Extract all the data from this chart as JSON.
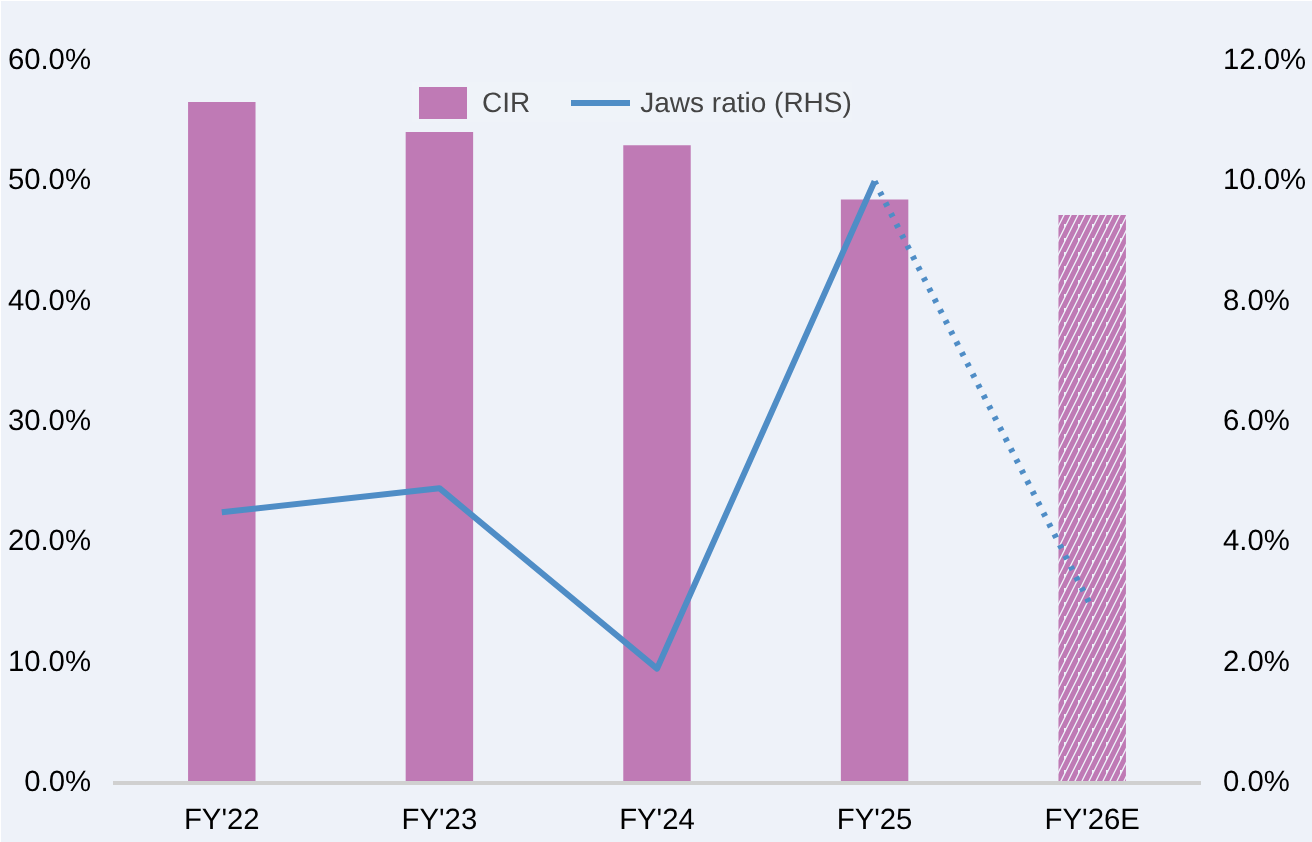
{
  "chart_data": {
    "type": "bar",
    "categories": [
      "FY'22",
      "FY'23",
      "FY'24",
      "FY'25",
      "FY'26E"
    ],
    "series": [
      {
        "name": "CIR",
        "color": "#bf7ab5",
        "values": [
          56.6,
          54.1,
          53.0,
          48.5,
          null
        ]
      },
      {
        "color": "#bf7ab5",
        "values": [
          null,
          null,
          null,
          null,
          47.2
        ]
      },
      {
        "name": "Jaws ratio (RHS)",
        "type": "line",
        "axis": "y2",
        "color": "#4f8dc6",
        "line_style": "solid",
        "values": [
          4.5,
          4.9,
          1.9,
          10.0,
          null
        ]
      },
      {
        "type": "line",
        "axis": "y2",
        "color": "#4f8dc6",
        "line_style": "dotted",
        "values": [
          null,
          null,
          null,
          10.0,
          2.9
        ]
      }
    ],
    "ylim": [
      0,
      60
    ],
    "yticks": [
      {
        "value": 0,
        "label": "0.0%"
      },
      {
        "value": 10,
        "label": "10.0%"
      },
      {
        "value": 20,
        "label": "20.0%"
      },
      {
        "value": 30,
        "label": "30.0%"
      },
      {
        "value": 40,
        "label": "40.0%"
      },
      {
        "value": 50,
        "label": "50.0%"
      },
      {
        "value": 60,
        "label": "60.0%"
      }
    ],
    "y2lim": [
      0,
      12
    ],
    "y2ticks": [
      {
        "value": 0,
        "label": "0.0%"
      },
      {
        "value": 2,
        "label": "2.0%"
      },
      {
        "value": 4,
        "label": "4.0%"
      },
      {
        "value": 6,
        "label": "6.0%"
      },
      {
        "value": 8,
        "label": "8.0%"
      },
      {
        "value": 10,
        "label": "10.0%"
      },
      {
        "value": 12,
        "label": "12.0%"
      }
    ],
    "grid": false,
    "legend": "top",
    "marker": "none"
  }
}
